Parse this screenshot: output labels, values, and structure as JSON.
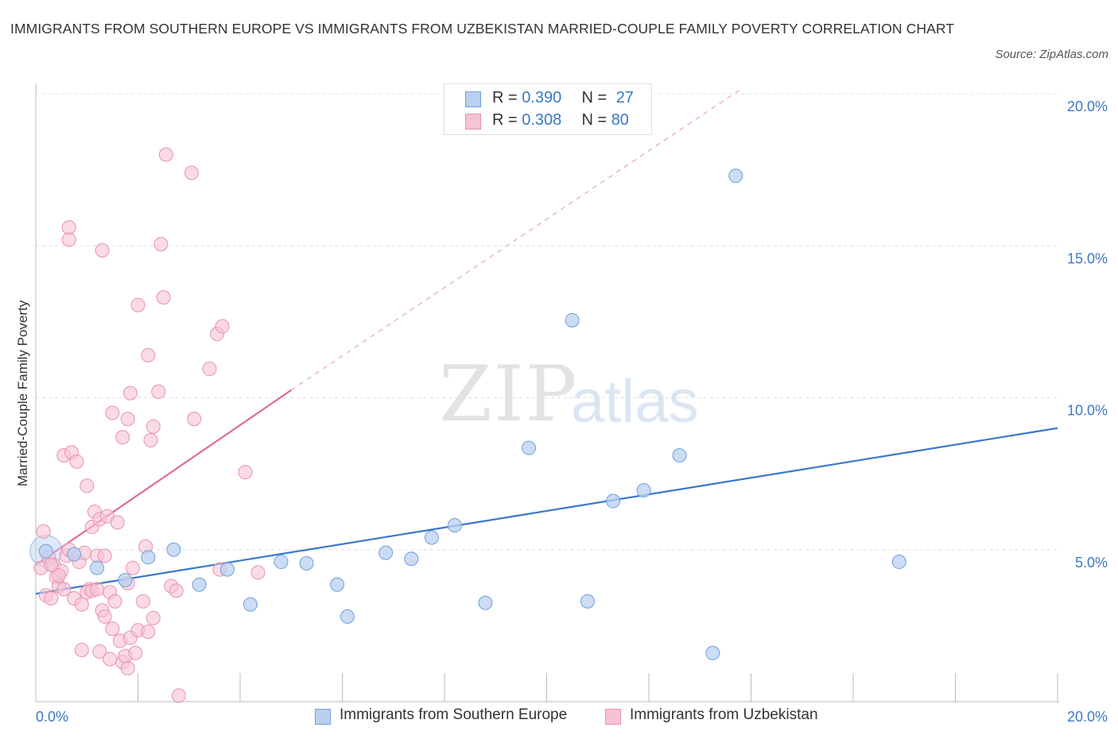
{
  "header": {
    "title": "IMMIGRANTS FROM SOUTHERN EUROPE VS IMMIGRANTS FROM UZBEKISTAN MARRIED-COUPLE FAMILY POVERTY CORRELATION CHART",
    "source": "Source: ZipAtlas.com"
  },
  "watermark": {
    "zip": "ZIP",
    "atlas": "atlas"
  },
  "legend": {
    "rows": [
      {
        "r_label": "R = ",
        "r_value": "0.390",
        "n_label": "N = ",
        "n_value": "27"
      },
      {
        "r_label": "R = ",
        "r_value": "0.308",
        "n_label": "N = ",
        "n_value": "80"
      }
    ]
  },
  "colors": {
    "blue": "#3a78c9",
    "blue_fill": "#b9d0f0",
    "pink": "#e06a96",
    "pink_fill": "#f7c3d3",
    "tick_text": "#3b78c4"
  },
  "chart_data": {
    "type": "scatter",
    "title": "IMMIGRANTS FROM SOUTHERN EUROPE VS IMMIGRANTS FROM UZBEKISTAN MARRIED-COUPLE FAMILY POVERTY CORRELATION CHART",
    "xlabel": "",
    "ylabel": "Married-Couple Family Poverty",
    "xlim": [
      0,
      20
    ],
    "ylim": [
      0,
      20
    ],
    "x_tick_labels": [
      "0.0%",
      "20.0%"
    ],
    "y_ticks": [
      5,
      10,
      15,
      20
    ],
    "y_tick_labels": [
      "5.0%",
      "10.0%",
      "15.0%",
      "20.0%"
    ],
    "grid": true,
    "legend_position": "top-center",
    "series": [
      {
        "name": "Immigrants from Southern Europe",
        "color": "#3a78c9",
        "r": 0.39,
        "n": 27,
        "trend": {
          "x": [
            0,
            20
          ],
          "y": [
            3.55,
            9.0
          ],
          "style": "solid"
        },
        "points": [
          [
            0.2,
            4.95
          ],
          [
            0.75,
            4.85
          ],
          [
            1.2,
            4.4
          ],
          [
            1.75,
            4.0
          ],
          [
            2.2,
            4.75
          ],
          [
            2.7,
            5.0
          ],
          [
            3.2,
            3.85
          ],
          [
            3.75,
            4.35
          ],
          [
            4.2,
            3.2
          ],
          [
            4.8,
            4.6
          ],
          [
            5.3,
            4.55
          ],
          [
            5.9,
            3.85
          ],
          [
            6.1,
            2.8
          ],
          [
            6.85,
            4.9
          ],
          [
            7.35,
            4.7
          ],
          [
            7.75,
            5.4
          ],
          [
            8.2,
            5.8
          ],
          [
            8.8,
            3.25
          ],
          [
            9.65,
            8.35
          ],
          [
            10.5,
            12.55
          ],
          [
            10.8,
            3.3
          ],
          [
            11.3,
            6.6
          ],
          [
            11.9,
            6.95
          ],
          [
            12.6,
            8.1
          ],
          [
            13.25,
            1.6
          ],
          [
            13.7,
            17.3
          ],
          [
            16.9,
            4.6
          ]
        ]
      },
      {
        "name": "Immigrants from Uzbekistan",
        "color": "#e06a96",
        "r": 0.308,
        "n": 80,
        "trend": {
          "x": [
            0,
            5.0
          ],
          "y": [
            4.5,
            10.25
          ],
          "style": "solid",
          "extended_to": [
            13.8,
            20.15
          ],
          "extended_style": "dashed"
        },
        "points": [
          [
            0.1,
            4.4
          ],
          [
            0.15,
            5.6
          ],
          [
            0.2,
            3.5
          ],
          [
            0.25,
            4.75
          ],
          [
            0.3,
            3.4
          ],
          [
            0.35,
            4.5
          ],
          [
            0.4,
            4.1
          ],
          [
            0.45,
            3.8
          ],
          [
            0.5,
            4.3
          ],
          [
            0.55,
            8.1
          ],
          [
            0.6,
            4.8
          ],
          [
            0.65,
            5.0
          ],
          [
            0.7,
            8.2
          ],
          [
            0.75,
            3.4
          ],
          [
            0.8,
            7.9
          ],
          [
            0.85,
            4.6
          ],
          [
            0.9,
            3.2
          ],
          [
            0.95,
            4.9
          ],
          [
            1.0,
            7.1
          ],
          [
            1.05,
            3.7
          ],
          [
            1.1,
            5.75
          ],
          [
            1.15,
            6.25
          ],
          [
            1.2,
            4.8
          ],
          [
            1.25,
            6.0
          ],
          [
            1.3,
            3.0
          ],
          [
            1.35,
            4.8
          ],
          [
            1.4,
            6.1
          ],
          [
            1.45,
            3.6
          ],
          [
            1.5,
            2.4
          ],
          [
            1.55,
            3.3
          ],
          [
            1.6,
            5.9
          ],
          [
            1.65,
            2.0
          ],
          [
            1.7,
            1.3
          ],
          [
            1.75,
            1.5
          ],
          [
            1.8,
            1.1
          ],
          [
            1.85,
            2.1
          ],
          [
            1.9,
            4.4
          ],
          [
            1.95,
            1.6
          ],
          [
            0.65,
            15.6
          ],
          [
            0.65,
            15.2
          ],
          [
            1.3,
            14.85
          ],
          [
            1.5,
            9.5
          ],
          [
            1.7,
            8.7
          ],
          [
            1.8,
            9.3
          ],
          [
            1.85,
            10.15
          ],
          [
            2.0,
            13.05
          ],
          [
            2.2,
            11.4
          ],
          [
            2.25,
            8.6
          ],
          [
            2.3,
            9.05
          ],
          [
            2.4,
            10.2
          ],
          [
            2.45,
            15.05
          ],
          [
            2.5,
            13.3
          ],
          [
            2.55,
            18.0
          ],
          [
            3.05,
            17.4
          ],
          [
            3.1,
            9.3
          ],
          [
            3.4,
            10.95
          ],
          [
            3.55,
            12.1
          ],
          [
            3.65,
            12.35
          ],
          [
            4.1,
            7.55
          ],
          [
            2.15,
            5.1
          ],
          [
            2.65,
            3.8
          ],
          [
            2.75,
            3.65
          ],
          [
            2.1,
            3.3
          ],
          [
            2.3,
            2.75
          ],
          [
            2.0,
            2.35
          ],
          [
            2.2,
            2.3
          ],
          [
            1.25,
            1.65
          ],
          [
            1.45,
            1.4
          ],
          [
            2.8,
            0.2
          ],
          [
            1.35,
            2.8
          ],
          [
            0.9,
            1.7
          ],
          [
            0.55,
            3.7
          ],
          [
            0.3,
            4.5
          ],
          [
            0.45,
            4.15
          ],
          [
            1.0,
            3.6
          ],
          [
            1.1,
            3.65
          ],
          [
            1.2,
            3.7
          ],
          [
            3.6,
            4.35
          ],
          [
            4.35,
            4.25
          ],
          [
            1.8,
            3.9
          ]
        ]
      }
    ]
  },
  "bottom_legend": {
    "items": [
      {
        "label": "Immigrants from Southern Europe"
      },
      {
        "label": "Immigrants from Uzbekistan"
      }
    ]
  }
}
